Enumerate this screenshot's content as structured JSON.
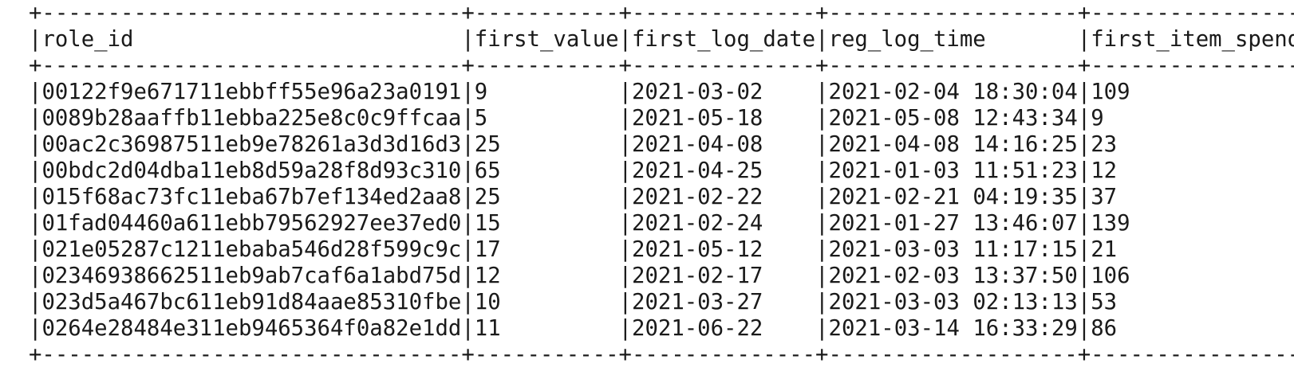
{
  "columns": [
    "role_id",
    "first_value",
    "first_log_date",
    "reg_log_time",
    "first_item_spend"
  ],
  "rows": [
    [
      "00122f9e671711ebbff55e96a23a0191",
      "9",
      "2021-03-02",
      "2021-02-04 18:30:04",
      "109"
    ],
    [
      "0089b28aaffb11ebba225e8c0c9ffcaa",
      "5",
      "2021-05-18",
      "2021-05-08 12:43:34",
      "9"
    ],
    [
      "00ac2c36987511eb9e78261a3d3d16d3",
      "25",
      "2021-04-08",
      "2021-04-08 14:16:25",
      "23"
    ],
    [
      "00bdc2d04dba11eb8d59a28f8d93c310",
      "65",
      "2021-04-25",
      "2021-01-03 11:51:23",
      "12"
    ],
    [
      "015f68ac73fc11eba67b7ef134ed2aa8",
      "25",
      "2021-02-22",
      "2021-02-21 04:19:35",
      "37"
    ],
    [
      "01fad04460a611ebb79562927ee37ed0",
      "15",
      "2021-02-24",
      "2021-01-27 13:46:07",
      "139"
    ],
    [
      "021e05287c1211ebaba546d28f599c9c",
      "17",
      "2021-05-12",
      "2021-03-03 11:17:15",
      "21"
    ],
    [
      "02346938662511eb9ab7caf6a1abd75d",
      "12",
      "2021-02-17",
      "2021-02-03 13:37:50",
      "106"
    ],
    [
      "023d5a467bc611eb91d84aae85310fbe",
      "10",
      "2021-03-27",
      "2021-03-03 02:13:13",
      "53"
    ],
    [
      "0264e28484e311eb9465364f0a82e1dd",
      "11",
      "2021-06-22",
      "2021-03-14 16:33:29",
      "86"
    ]
  ]
}
